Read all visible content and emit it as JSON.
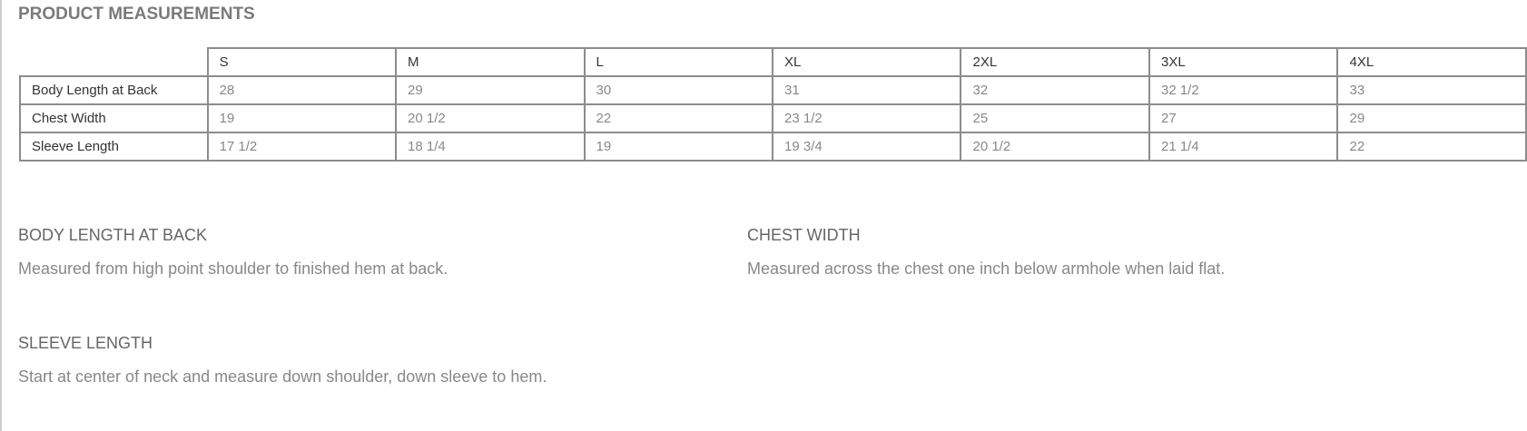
{
  "title": "PRODUCT MEASUREMENTS",
  "table": {
    "sizes": [
      "S",
      "M",
      "L",
      "XL",
      "2XL",
      "3XL",
      "4XL"
    ],
    "rows": [
      {
        "label": "Body Length at Back",
        "values": [
          "28",
          "29",
          "30",
          "31",
          "32",
          "32 1/2",
          "33"
        ]
      },
      {
        "label": "Chest Width",
        "values": [
          "19",
          "20 1/2",
          "22",
          "23 1/2",
          "25",
          "27",
          "29"
        ]
      },
      {
        "label": "Sleeve Length",
        "values": [
          "17 1/2",
          "18 1/4",
          "19",
          "19 3/4",
          "20 1/2",
          "21 1/4",
          "22"
        ]
      }
    ]
  },
  "sections": [
    {
      "heading": "BODY LENGTH AT BACK",
      "text": "Measured from high point shoulder to finished hem at back."
    },
    {
      "heading": "CHEST WIDTH",
      "text": "Measured across the chest one inch below armhole when laid flat."
    },
    {
      "heading": "SLEEVE LENGTH",
      "text": "Start at center of neck and measure down shoulder, down sleeve to hem."
    }
  ]
}
